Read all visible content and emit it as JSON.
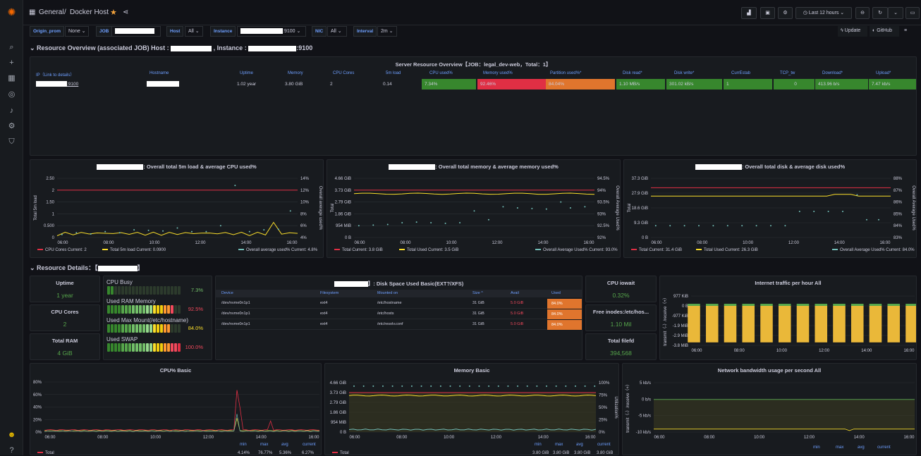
{
  "breadcrumb": {
    "folder": "General",
    "dashboard": "Docker Host"
  },
  "time": {
    "range": "Last 12 hours"
  },
  "toolbar": {
    "update": "Update",
    "github": "GitHub"
  },
  "vars": [
    {
      "label": "Origin_prom",
      "value": "None"
    },
    {
      "label": "JOB",
      "value": ""
    },
    {
      "label": "Host",
      "value": "All"
    },
    {
      "label": "Instance",
      "value": ":9100"
    },
    {
      "label": "NIC",
      "value": "All"
    },
    {
      "label": "Interval",
      "value": "2m"
    }
  ],
  "row1": {
    "prefix": "Resource Overview (associated JOB)",
    "host_label": "Host :",
    "instance_label": ", Instance :",
    "instance_suffix": ":9100"
  },
  "overview": {
    "title": "Server Resource Overview【JOB：legal_dev-web，Total：1】",
    "headers": [
      "IP（Link to details）",
      "Hostname",
      "Uptime",
      "Memory",
      "CPU Cores",
      "5m load",
      "CPU used%",
      "Memory used%",
      "Partition used%*",
      "Disk read*",
      "Disk write*",
      "CurrEstab",
      "TCP_tw",
      "Download*",
      "Upload*"
    ],
    "row": {
      "ip_suffix": ":9100",
      "uptime": "1.02 year",
      "memory": "3.80 GiB",
      "cores": "2",
      "load": "0.14",
      "cpu": "7.34%",
      "mem": "92.46%",
      "part": "84.04%",
      "dread": "1.10 MB/s",
      "dwrite": "301.02 kB/s",
      "estab": "1",
      "tcptw": "0",
      "down": "413.96 b/s",
      "up": "7.47 kb/s"
    }
  },
  "charts": [
    {
      "title": ": Overall total 5m load & average CPU used%",
      "ylabel": "Total 5m load",
      "y2label": "Overall average used%",
      "yticks": [
        "2.50",
        "2",
        "1.50",
        "1",
        "0.500",
        "0"
      ],
      "y2ticks": [
        "14%",
        "12%",
        "10%",
        "8%",
        "6%",
        "4%"
      ],
      "legend": [
        {
          "name": "CPU Cores",
          "color": "#e02f44",
          "text": "Current: 2"
        },
        {
          "name": "Total 5m load",
          "color": "#fade2a",
          "text": "Current: 0.0900"
        },
        {
          "name": "Overall average used%",
          "color": "#73bfb8",
          "text": "Current: 4.8%"
        }
      ]
    },
    {
      "title": ": Overall total memory & average memory used%",
      "ylabel": "Total",
      "y2label": "Overall Average Used%",
      "yticks": [
        "4.66 GiB",
        "3.73 GiB",
        "2.79 GiB",
        "1.86 GiB",
        "954 MiB",
        "0 B"
      ],
      "y2ticks": [
        "94.5%",
        "94%",
        "93.5%",
        "93%",
        "92.5%",
        "92%"
      ],
      "legend": [
        {
          "name": "Total",
          "color": "#e02f44",
          "text": "Current: 3.8 GiB"
        },
        {
          "name": "Total Used",
          "color": "#fade2a",
          "text": "Current: 3.5 GiB"
        },
        {
          "name": "Overall Average Used%",
          "color": "#73bfb8",
          "text": "Current: 93.0%"
        }
      ]
    },
    {
      "title": ": Overall total disk & average disk used%",
      "ylabel": "Total",
      "y2label": "Overall Average Used%",
      "yticks": [
        "37.3 GiB",
        "27.9 GiB",
        "18.6 GiB",
        "9.3 GiB",
        "0 B"
      ],
      "y2ticks": [
        "88%",
        "87%",
        "86%",
        "85%",
        "84%",
        "83%"
      ],
      "legend": [
        {
          "name": "Total",
          "color": "#e02f44",
          "text": "Current: 31.4 GiB"
        },
        {
          "name": "Total Used",
          "color": "#fade2a",
          "text": "Current: 26.3 GiB"
        },
        {
          "name": "Overall Average Used%",
          "color": "#73bfb8",
          "text": "Current: 84.0%"
        }
      ]
    }
  ],
  "xticks": [
    "06:00",
    "08:00",
    "10:00",
    "12:00",
    "14:00",
    "16:00"
  ],
  "row2": {
    "prefix": "Resource Details：【",
    "suffix": "】"
  },
  "stats": {
    "uptime_t": "Uptime",
    "uptime": "1 year",
    "cores_t": "CPU Cores",
    "cores": "2",
    "ram_t": "Total RAM",
    "ram": "4 GiB",
    "iowait_t": "CPU iowait",
    "iowait": "0.32%",
    "inodes_t": "Free inodes:/etc/hos...",
    "inodes": "1.10 Mil",
    "filefd_t": "Total filefd",
    "filefd": "394,568"
  },
  "gauges": [
    {
      "name": "CPU Busy",
      "value": "7.3%",
      "frac": 0.073
    },
    {
      "name": "Used RAM Memory",
      "value": "92.5%",
      "frac": 0.925
    },
    {
      "name": "Used Max Mount(/etc/hostname)",
      "value": "84.0%",
      "frac": 0.84
    },
    {
      "name": "Used SWAP",
      "value": "100.0%",
      "frac": 1.0
    }
  ],
  "disk": {
    "title": "】: Disk Space Used Basic(EXT?/XFS)",
    "headers": [
      "Device",
      "Filesystem",
      "Mounted on",
      "Size ^",
      "Avail",
      "Used"
    ],
    "rows": [
      [
        "/dev/nvme0n1p1",
        "ext4",
        "/etc/hostname",
        "31 GiB",
        "5.0 GiB",
        "84.0%"
      ],
      [
        "/dev/nvme0n1p1",
        "ext4",
        "/etc/hosts",
        "31 GiB",
        "5.0 GiB",
        "84.0%"
      ],
      [
        "/dev/nvme0n1p1",
        "ext4",
        "/etc/resolv.conf",
        "31 GiB",
        "5.0 GiB",
        "84.0%"
      ]
    ]
  },
  "traffic": {
    "title": "Internet traffic per hour All",
    "ylabel": "transmit（-）/receive（+）",
    "yticks": [
      "977 KiB",
      "0 B",
      "-977 KiB",
      "-1.9 MiB",
      "-2.9 MiB",
      "-3.8 MiB"
    ]
  },
  "cpu_basic": {
    "title": "CPU% Basic",
    "yticks": [
      "80%",
      "60%",
      "40%",
      "20%",
      "0%"
    ],
    "footer": {
      "min": "min",
      "max": "max",
      "avg": "avg",
      "current": "current",
      "name": "Total",
      "vmin": "4.14%",
      "vmax": "76.77%",
      "vavg": "5.36%",
      "vcur": "6.27%"
    }
  },
  "mem_basic": {
    "title": "Memory Basic",
    "yticks": [
      "4.66 GiB",
      "3.73 GiB",
      "2.79 GiB",
      "1.86 GiB",
      "954 MiB",
      "0 B"
    ],
    "y2ticks": [
      "100%",
      "75%",
      "50%",
      "25%",
      "0%"
    ],
    "y2label": "Utilization%",
    "footer": {
      "name": "Total",
      "vmin": "3.80 GiB",
      "vmax": "3.80 GiB",
      "vavg": "3.80 GiB",
      "vcur": "3.80 GiB"
    }
  },
  "net_basic": {
    "title": "Network bandwidth usage per second All",
    "ylabel": "transmit（-）/receive（+）",
    "yticks": [
      "5 kb/s",
      "0 b/s",
      "-5 kb/s",
      "-10 kb/s"
    ]
  },
  "colors": {
    "green": "#37872d",
    "red": "#e02f44",
    "orange": "#e0752d",
    "blue": "#6e9fff"
  }
}
